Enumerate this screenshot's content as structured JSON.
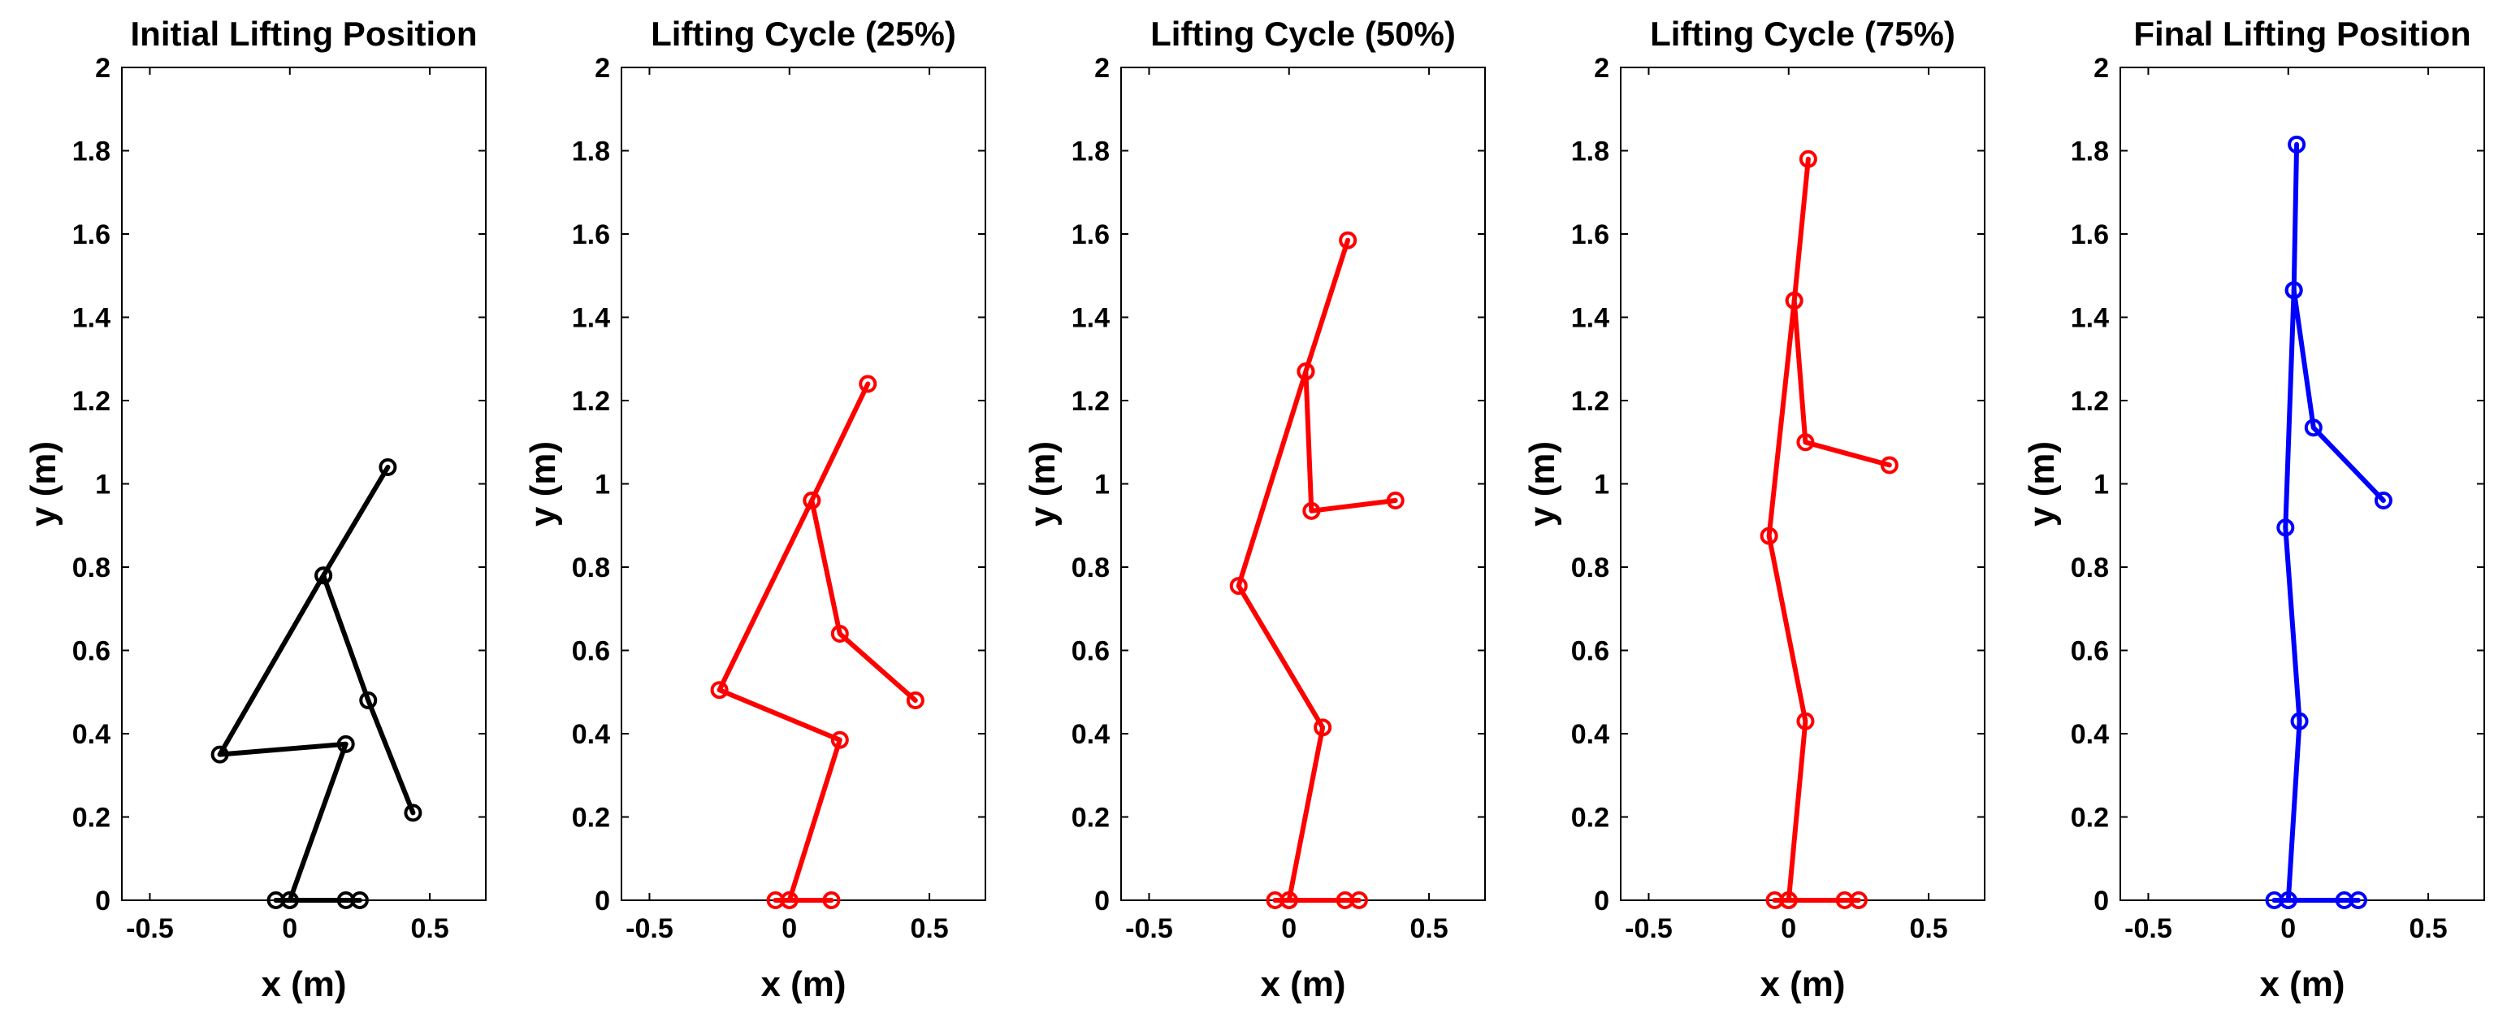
{
  "chart_data": [
    {
      "type": "line",
      "title": "Initial Lifting Position",
      "xlabel": "x (m)",
      "ylabel": "y (m)",
      "xlim": [
        -0.6,
        0.7
      ],
      "ylim": [
        0,
        2
      ],
      "xticks": [
        -0.5,
        0,
        0.5
      ],
      "xtick_labels": [
        "-0.5",
        "0",
        "0.5"
      ],
      "yticks": [
        0,
        0.2,
        0.4,
        0.6,
        0.8,
        1,
        1.2,
        1.4,
        1.6,
        1.8,
        2
      ],
      "ytick_labels": [
        "0",
        "0.2",
        "0.4",
        "0.6",
        "0.8",
        "1",
        "1.2",
        "1.4",
        "1.6",
        "1.8",
        "2"
      ],
      "grid": false,
      "color": "#000000",
      "series": [
        {
          "x": [
            -0.05,
            0.0,
            0.2,
            0.25
          ],
          "y": [
            0.0,
            0.0,
            0.0,
            0.0
          ]
        },
        {
          "x": [
            0.0,
            0.2,
            -0.25,
            0.12,
            0.28,
            0.44
          ],
          "y": [
            0.0,
            0.375,
            0.35,
            0.78,
            0.48,
            0.21
          ]
        },
        {
          "x": [
            0.12,
            0.35
          ],
          "y": [
            0.78,
            1.04
          ]
        }
      ]
    },
    {
      "type": "line",
      "title": "Lifting Cycle (25%)",
      "xlabel": "x (m)",
      "ylabel": "y (m)",
      "xlim": [
        -0.6,
        0.7
      ],
      "ylim": [
        0,
        2
      ],
      "xticks": [
        -0.5,
        0,
        0.5
      ],
      "xtick_labels": [
        "-0.5",
        "0",
        "0.5"
      ],
      "yticks": [
        0,
        0.2,
        0.4,
        0.6,
        0.8,
        1,
        1.2,
        1.4,
        1.6,
        1.8,
        2
      ],
      "ytick_labels": [
        "0",
        "0.2",
        "0.4",
        "0.6",
        "0.8",
        "1",
        "1.2",
        "1.4",
        "1.6",
        "1.8",
        "2"
      ],
      "grid": false,
      "color": "#ff0000",
      "series": [
        {
          "x": [
            -0.05,
            0.0,
            0.15
          ],
          "y": [
            0.0,
            0.0,
            0.0
          ]
        },
        {
          "x": [
            0.0,
            0.18,
            -0.25,
            0.08,
            0.18,
            0.45
          ],
          "y": [
            0.0,
            0.385,
            0.505,
            0.96,
            0.64,
            0.48
          ]
        },
        {
          "x": [
            0.08,
            0.28
          ],
          "y": [
            0.96,
            1.24
          ]
        }
      ]
    },
    {
      "type": "line",
      "title": "Lifting Cycle (50%)",
      "xlabel": "x (m)",
      "ylabel": "y (m)",
      "xlim": [
        -0.6,
        0.7
      ],
      "ylim": [
        0,
        2
      ],
      "xticks": [
        -0.5,
        0,
        0.5
      ],
      "xtick_labels": [
        "-0.5",
        "0",
        "0.5"
      ],
      "yticks": [
        0,
        0.2,
        0.4,
        0.6,
        0.8,
        1,
        1.2,
        1.4,
        1.6,
        1.8,
        2
      ],
      "ytick_labels": [
        "0",
        "0.2",
        "0.4",
        "0.6",
        "0.8",
        "1",
        "1.2",
        "1.4",
        "1.6",
        "1.8",
        "2"
      ],
      "grid": false,
      "color": "#ff0000",
      "series": [
        {
          "x": [
            -0.05,
            0.0,
            0.2,
            0.25
          ],
          "y": [
            0.0,
            0.0,
            0.0,
            0.0
          ]
        },
        {
          "x": [
            0.0,
            0.12,
            -0.18,
            0.06,
            0.08,
            0.38
          ],
          "y": [
            0.0,
            0.415,
            0.755,
            1.27,
            0.935,
            0.96
          ]
        },
        {
          "x": [
            0.06,
            0.21
          ],
          "y": [
            1.27,
            1.585
          ]
        }
      ]
    },
    {
      "type": "line",
      "title": "Lifting Cycle (75%)",
      "xlabel": "x (m)",
      "ylabel": "y (m)",
      "xlim": [
        -0.6,
        0.7
      ],
      "ylim": [
        0,
        2
      ],
      "xticks": [
        -0.5,
        0,
        0.5
      ],
      "xtick_labels": [
        "-0.5",
        "0",
        "0.5"
      ],
      "yticks": [
        0,
        0.2,
        0.4,
        0.6,
        0.8,
        1,
        1.2,
        1.4,
        1.6,
        1.8,
        2
      ],
      "ytick_labels": [
        "0",
        "0.2",
        "0.4",
        "0.6",
        "0.8",
        "1",
        "1.2",
        "1.4",
        "1.6",
        "1.8",
        "2"
      ],
      "grid": false,
      "color": "#ff0000",
      "series": [
        {
          "x": [
            -0.05,
            0.0,
            0.2,
            0.25
          ],
          "y": [
            0.0,
            0.0,
            0.0,
            0.0
          ]
        },
        {
          "x": [
            0.0,
            0.06,
            -0.07,
            0.02,
            0.06,
            0.36
          ],
          "y": [
            0.0,
            0.43,
            0.875,
            1.44,
            1.1,
            1.045
          ]
        },
        {
          "x": [
            0.02,
            0.07
          ],
          "y": [
            1.44,
            1.78
          ]
        }
      ]
    },
    {
      "type": "line",
      "title": "Final Lifting Position",
      "xlabel": "x (m)",
      "ylabel": "y (m)",
      "xlim": [
        -0.6,
        0.7
      ],
      "ylim": [
        0,
        2
      ],
      "xticks": [
        -0.5,
        0,
        0.5
      ],
      "xtick_labels": [
        "-0.5",
        "0",
        "0.5"
      ],
      "yticks": [
        0,
        0.2,
        0.4,
        0.6,
        0.8,
        1,
        1.2,
        1.4,
        1.6,
        1.8,
        2
      ],
      "ytick_labels": [
        "0",
        "0.2",
        "0.4",
        "0.6",
        "0.8",
        "1",
        "1.2",
        "1.4",
        "1.6",
        "1.8",
        "2"
      ],
      "grid": false,
      "color": "#0000ff",
      "series": [
        {
          "x": [
            -0.05,
            0.0,
            0.2,
            0.25
          ],
          "y": [
            0.0,
            0.0,
            0.0,
            0.0
          ]
        },
        {
          "x": [
            0.0,
            0.04,
            -0.01,
            0.02,
            0.09,
            0.34
          ],
          "y": [
            0.0,
            0.43,
            0.895,
            1.465,
            1.135,
            0.96
          ]
        },
        {
          "x": [
            0.02,
            0.03
          ],
          "y": [
            1.465,
            1.815
          ]
        }
      ]
    }
  ]
}
